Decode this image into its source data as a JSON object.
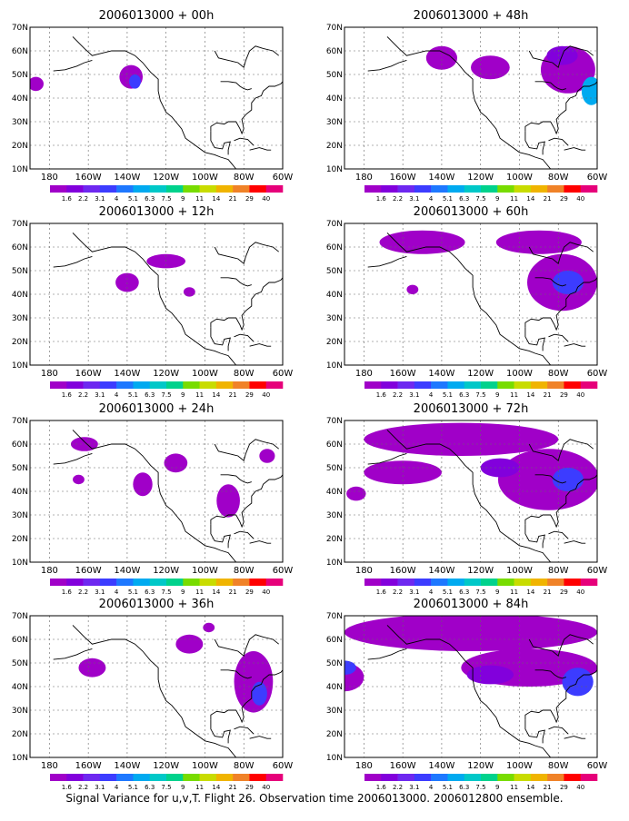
{
  "figure": {
    "caption": "Signal Variance for u,v,T. Flight 26. Observation time 2006013000. 2006012800 ensemble."
  },
  "lat_labels": [
    "70N",
    "60N",
    "50N",
    "40N",
    "30N",
    "20N",
    "10N"
  ],
  "lon_labels": [
    "180",
    "160W",
    "140W",
    "120W",
    "100W",
    "80W",
    "60W"
  ],
  "legend": {
    "levels": [
      "1.6",
      "2.2",
      "3.1",
      "4",
      "5.1",
      "6.3",
      "7.5",
      "9",
      "11",
      "14",
      "21",
      "29",
      "40"
    ],
    "colors": [
      "#a000c8",
      "#8200dc",
      "#6e28f0",
      "#3c3cff",
      "#1e78ff",
      "#00aaf0",
      "#00c8c8",
      "#00d28c",
      "#78dc00",
      "#c8dc00",
      "#f0b400",
      "#f08228",
      "#ff0000",
      "#e6007a"
    ]
  },
  "panels": [
    {
      "title": "2006013000 + 00h"
    },
    {
      "title": "2006013000 + 48h"
    },
    {
      "title": "2006013000 + 12h"
    },
    {
      "title": "2006013000 + 60h"
    },
    {
      "title": "2006013000 + 24h"
    },
    {
      "title": "2006013000 + 72h"
    },
    {
      "title": "2006013000 + 36h"
    },
    {
      "title": "2006013000 + 84h"
    }
  ],
  "map_extent": {
    "lon_min": -190,
    "lon_max": -60,
    "lat_min": 10,
    "lat_max": 70
  }
}
